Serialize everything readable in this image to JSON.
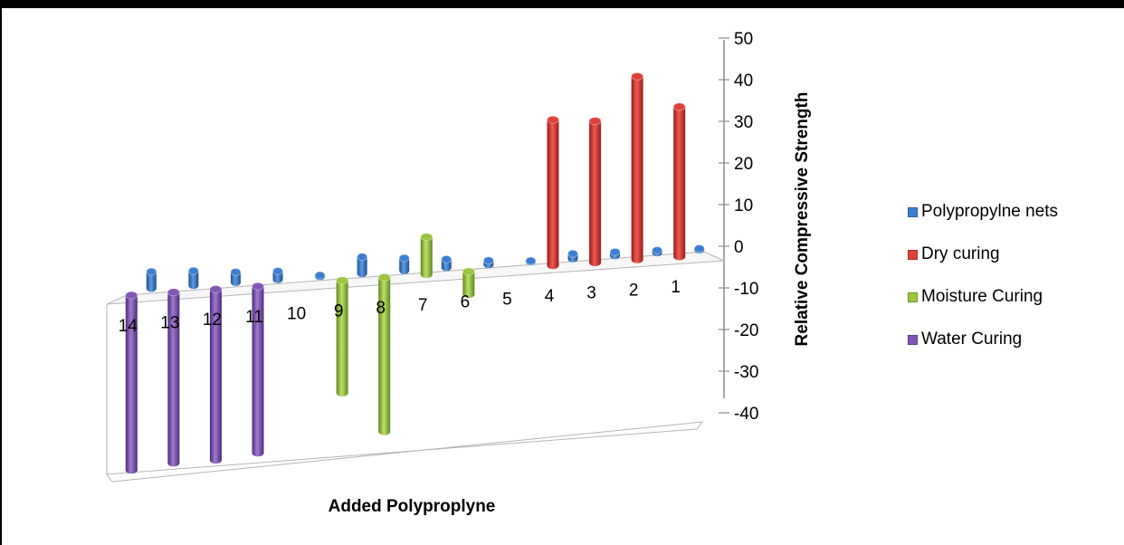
{
  "chart_data": {
    "type": "bar",
    "subtype": "3d-cylinder",
    "categories": [
      "1",
      "2",
      "3",
      "4",
      "5",
      "6",
      "7",
      "8",
      "9",
      "10",
      "11",
      "12",
      "13",
      "14"
    ],
    "category_order": "reversed",
    "series": [
      {
        "name": "Polypropylne nets",
        "color": "#3c7fd0",
        "values": [
          0.3,
          0.6,
          0.9,
          1.2,
          0.2,
          1.0,
          2.0,
          3.0,
          4.0,
          0.3,
          2.0,
          2.5,
          3.5,
          4.0
        ]
      },
      {
        "name": "Dry curing",
        "color": "#e0403a",
        "values": [
          36,
          44,
          34,
          35,
          0,
          0,
          0,
          0,
          0,
          0,
          0,
          0,
          0,
          0
        ]
      },
      {
        "name": "Moisture Curing",
        "color": "#9bc53d",
        "values": [
          0,
          0,
          0,
          0,
          0,
          -5.5,
          9,
          -37,
          -27,
          0,
          0,
          0,
          0,
          0
        ]
      },
      {
        "name": "Water Curing",
        "color": "#8256b5",
        "values": [
          0,
          0,
          0,
          0,
          0,
          0,
          0,
          0,
          0,
          0,
          -40,
          -41,
          -41,
          -42
        ]
      }
    ],
    "title": "",
    "xlabel": "Added Polyproplyne",
    "ylabel": "Relative Compressive Strength",
    "ylim": [
      -40,
      50
    ],
    "yticks": [
      "50",
      "40",
      "30",
      "20",
      "10",
      "0",
      "-10",
      "-20",
      "-30",
      "-40"
    ],
    "grid": false,
    "legend": "right"
  }
}
